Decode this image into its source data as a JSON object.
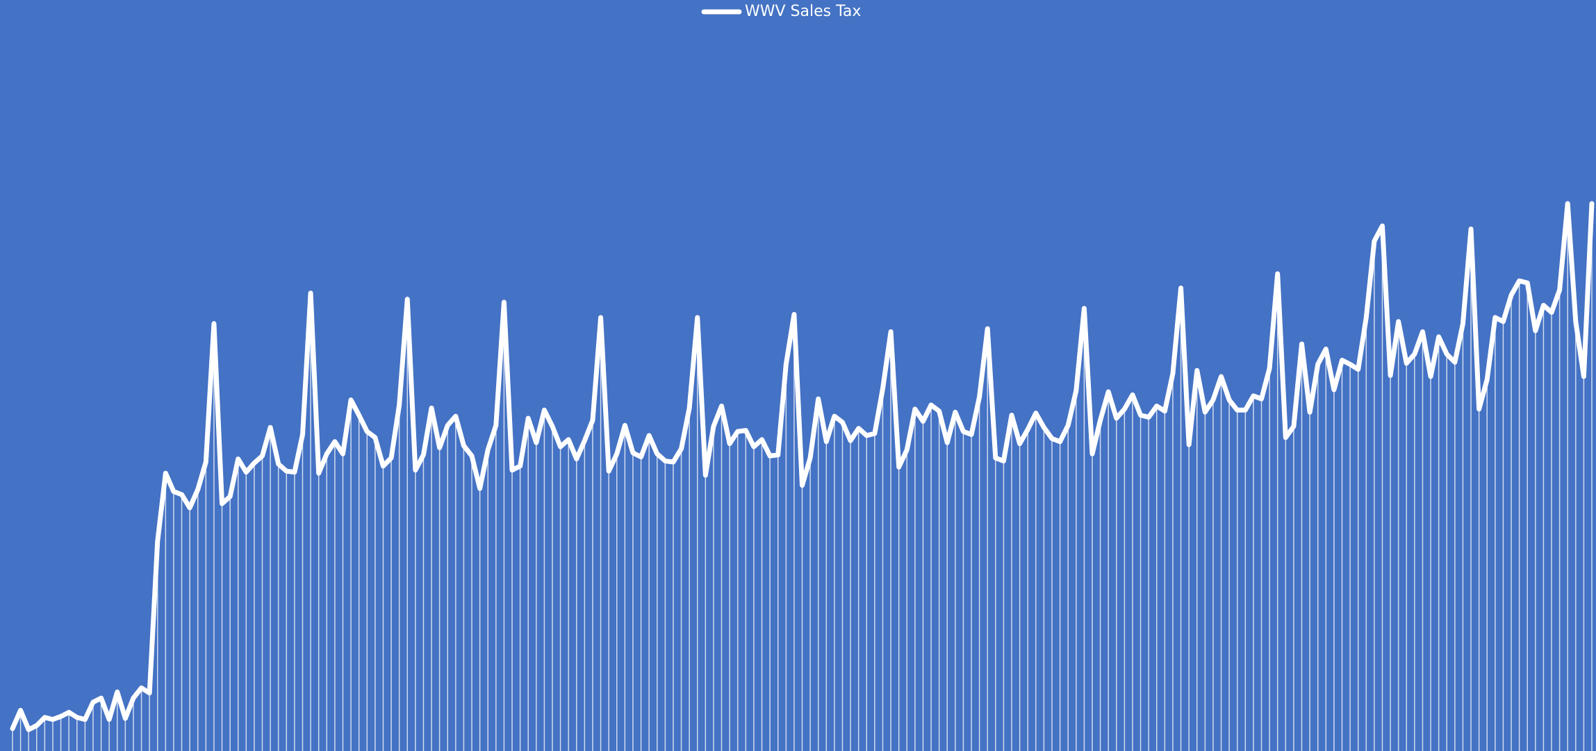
{
  "chart_data": {
    "type": "line",
    "background": "#4472c4",
    "drop_lines": true,
    "ylim": [
      0,
      738
    ],
    "series": [
      {
        "name": "WWV Sales Tax",
        "color": "#ffffff",
        "values": [
          22,
          40,
          21,
          25,
          33,
          31,
          34,
          38,
          33,
          31,
          48,
          52,
          31,
          58,
          32,
          52,
          62,
          57,
          206,
          273,
          255,
          252,
          239,
          257,
          284,
          420,
          243,
          250,
          287,
          274,
          283,
          290,
          318,
          282,
          275,
          274,
          311,
          450,
          273,
          292,
          304,
          292,
          345,
          330,
          314,
          308,
          280,
          288,
          340,
          444,
          276,
          291,
          337,
          298,
          320,
          329,
          300,
          290,
          258,
          296,
          320,
          441,
          276,
          280,
          327,
          303,
          335,
          319,
          299,
          306,
          287,
          305,
          325,
          426,
          275,
          292,
          320,
          293,
          289,
          310,
          292,
          285,
          284,
          297,
          337,
          426,
          271,
          319,
          339,
          302,
          314,
          315,
          299,
          306,
          290,
          291,
          380,
          429,
          261,
          288,
          346,
          304,
          329,
          323,
          305,
          317,
          310,
          312,
          356,
          412,
          279,
          296,
          336,
          324,
          340,
          334,
          303,
          333,
          314,
          311,
          348,
          415,
          288,
          285,
          330,
          302,
          316,
          332,
          318,
          307,
          304,
          320,
          354,
          435,
          292,
          325,
          353,
          327,
          336,
          350,
          330,
          328,
          339,
          334,
          371,
          455,
          301,
          374,
          333,
          345,
          368,
          345,
          335,
          335,
          349,
          346,
          376,
          469,
          308,
          319,
          400,
          333,
          380,
          395,
          355,
          384,
          380,
          375,
          426,
          501,
          516,
          369,
          422,
          381,
          390,
          412,
          368,
          407,
          390,
          382,
          420,
          513,
          336,
          365,
          426,
          422,
          448,
          462,
          460,
          413,
          438,
          431,
          453,
          538,
          422,
          368,
          538
        ]
      }
    ]
  }
}
